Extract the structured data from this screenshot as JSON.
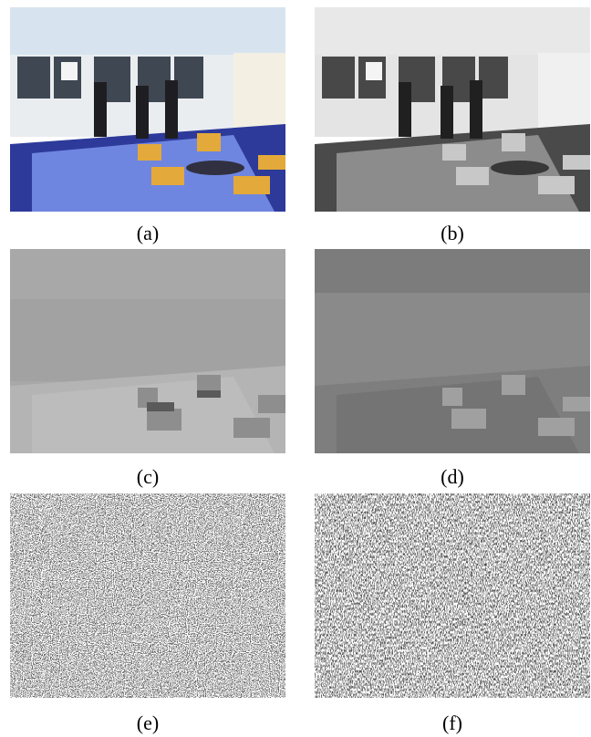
{
  "figure": {
    "panels": [
      {
        "id": "a",
        "caption": "(a)",
        "content": "color image"
      },
      {
        "id": "b",
        "caption": "(b)",
        "content": "grayscale image"
      },
      {
        "id": "c",
        "caption": "(c)",
        "content": "smooth gray image"
      },
      {
        "id": "d",
        "caption": "(d)",
        "content": "dark gray image"
      },
      {
        "id": "e",
        "caption": "(e)",
        "content": "noise pattern"
      },
      {
        "id": "f",
        "caption": "(f)",
        "content": "noise pattern"
      }
    ]
  },
  "colors": {
    "ceiling_a": "#d7e4f0",
    "wall_a": "#eef0f2",
    "floor_a": "#2d3a9a",
    "rug_a": "#6f86e0",
    "chair_a": "#e3a93a",
    "gray_b_floor": "#4a4a4a",
    "gray_b_rug": "#8c8c8c",
    "gray_c": "#a8a8a8",
    "gray_d": "#8a8a8a"
  }
}
